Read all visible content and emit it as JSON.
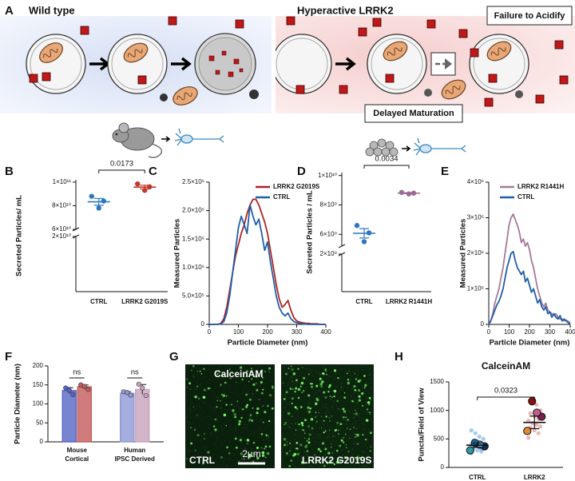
{
  "panels": {
    "letters": [
      "A",
      "B",
      "C",
      "D",
      "E",
      "F",
      "G",
      "H"
    ],
    "A": {
      "left_title": "Wild type",
      "right_title": "Hyperactive LRRK2",
      "callouts": [
        "Failure to Acidify",
        "Delayed Maturation"
      ]
    },
    "G": {
      "stain": "CalceinAM",
      "left_label": "CTRL",
      "right_label": "LRRK2 G2019S",
      "scale_bar": "2µm"
    }
  },
  "chart_data": [
    {
      "type": "dot",
      "ylabel": "Secreted Particles/ mL",
      "categories": [
        "CTRL",
        "LRRK2 G2019S"
      ],
      "colors": [
        "#2b78c0",
        "#c0392b"
      ],
      "points": [
        [
          88000000000,
          84000000000,
          78000000000
        ],
        [
          98500000000,
          96000000000,
          93000000000
        ]
      ],
      "means": [
        83300000000,
        95800000000
      ],
      "errors": [
        2900000000,
        1600000000
      ],
      "comparison": "0.0173",
      "ylim": [
        60000000000,
        102000000000
      ],
      "yticks": [
        {
          "value": 60000000000,
          "label": "6×10¹⁰"
        },
        {
          "value": 80000000000,
          "label": "8×10¹⁰"
        },
        {
          "value": 100000000000,
          "label": "1×10¹¹"
        }
      ],
      "ylim_lower": [
        0,
        20000000000
      ],
      "yticks_lower": [
        {
          "value": 20000000000,
          "label": "2×10¹⁰"
        }
      ]
    },
    {
      "type": "line",
      "xlabel": "Particle Diameter (nm)",
      "ylabel": "Measured Particles",
      "legend": "upper right",
      "x": [
        0,
        10,
        20,
        30,
        40,
        50,
        60,
        70,
        80,
        90,
        100,
        110,
        120,
        130,
        140,
        150,
        160,
        170,
        180,
        190,
        200,
        210,
        220,
        230,
        240,
        250,
        260,
        270,
        280,
        290,
        300,
        310,
        320,
        330,
        340,
        350,
        360,
        370,
        380,
        390,
        400
      ],
      "series": [
        {
          "name": "LRRK2 G2019S",
          "color": "#b22222",
          "values": [
            0,
            0,
            0,
            0,
            20000,
            100000,
            300000,
            600000,
            900000,
            1200000,
            1400000,
            1600000,
            1750000,
            1950000,
            2100000,
            2200000,
            2200000,
            2100000,
            1950000,
            1800000,
            1600000,
            1300000,
            1000000,
            700000,
            450000,
            300000,
            350000,
            420000,
            250000,
            120000,
            60000,
            40000,
            30000,
            20000,
            20000,
            10000,
            10000,
            10000,
            0,
            0,
            0
          ]
        },
        {
          "name": "CTRL",
          "color": "#1f5fa8",
          "values": [
            0,
            0,
            0,
            0,
            10000,
            50000,
            200000,
            500000,
            900000,
            1300000,
            1700000,
            1900000,
            1750000,
            1600000,
            2100000,
            1900000,
            1750000,
            1850000,
            1600000,
            1300000,
            1450000,
            1100000,
            800000,
            500000,
            300000,
            200000,
            150000,
            200000,
            100000,
            50000,
            30000,
            20000,
            10000,
            10000,
            0,
            0,
            0,
            0,
            0,
            0,
            0
          ]
        }
      ],
      "xlim": [
        0,
        400
      ],
      "xticks": [
        0,
        100,
        200,
        300,
        400
      ],
      "ylim": [
        0,
        2500000
      ],
      "yticks": [
        0,
        {
          "value": 500000,
          "label": "5.0×10⁵"
        },
        {
          "value": 1000000,
          "label": "1.0×10⁶"
        },
        {
          "value": 1500000,
          "label": "1.5×10⁶"
        },
        {
          "value": 2000000,
          "label": "2.0×10⁶"
        },
        {
          "value": 2500000,
          "label": "2.5×10⁶"
        }
      ]
    },
    {
      "type": "dot",
      "ylabel": "Secreted Particles / mL",
      "categories": [
        "CTRL",
        "LRRK2 R1441H"
      ],
      "colors": [
        "#2b78c0",
        "#9b6b94"
      ],
      "points": [
        [
          6600000000,
          6100000000,
          5500000000
        ],
        [
          8850000000,
          8800000000,
          8750000000
        ]
      ],
      "means": [
        6070000000,
        8800000000
      ],
      "errors": [
        320000000,
        30000000
      ],
      "comparison": "0.0034",
      "ylim": [
        5200000000,
        10200000000
      ],
      "yticks": [
        {
          "value": 6000000000,
          "label": "6×10⁹"
        },
        {
          "value": 8000000000,
          "label": "8×10⁹"
        },
        {
          "value": 10000000000,
          "label": "1×10¹⁰"
        }
      ],
      "ylim_lower": [
        0,
        2000000000
      ],
      "yticks_lower": [
        {
          "value": 2000000000,
          "label": "2×10⁹"
        }
      ]
    },
    {
      "type": "line",
      "xlabel": "Particle Diameter (nm)",
      "ylabel": "Measured Particles",
      "legend": "upper right",
      "x": [
        0,
        10,
        20,
        30,
        40,
        50,
        60,
        70,
        80,
        90,
        100,
        110,
        120,
        130,
        140,
        150,
        160,
        170,
        180,
        190,
        200,
        210,
        220,
        230,
        240,
        250,
        260,
        270,
        280,
        290,
        300,
        310,
        320,
        330,
        340,
        350,
        360,
        370,
        380,
        390,
        400
      ],
      "series": [
        {
          "name": "LRRK2 R1441H",
          "color": "#a57a9a",
          "values": [
            0,
            100000,
            300000,
            600000,
            800000,
            1000000,
            1300000,
            1600000,
            2000000,
            2400000,
            2800000,
            3000000,
            3100000,
            2950000,
            2800000,
            2600000,
            2300000,
            2400000,
            2200000,
            2300000,
            2100000,
            1800000,
            1600000,
            1300000,
            1000000,
            800000,
            600000,
            500000,
            600000,
            400000,
            350000,
            300000,
            250000,
            300000,
            200000,
            150000,
            150000,
            100000,
            120000,
            80000,
            50000
          ]
        },
        {
          "name": "CTRL",
          "color": "#1f5fa8",
          "values": [
            0,
            100000,
            250000,
            400000,
            550000,
            650000,
            800000,
            1000000,
            1300000,
            1600000,
            1800000,
            2000000,
            2050000,
            1800000,
            1600000,
            1500000,
            1400000,
            1500000,
            1200000,
            1300000,
            1100000,
            900000,
            1000000,
            800000,
            600000,
            700000,
            500000,
            400000,
            500000,
            300000,
            350000,
            200000,
            300000,
            200000,
            150000,
            250000,
            100000,
            150000,
            100000,
            50000,
            20000
          ]
        }
      ],
      "xlim": [
        0,
        400
      ],
      "xticks": [
        0,
        100,
        200,
        300,
        400
      ],
      "ylim": [
        0,
        4000000
      ],
      "yticks": [
        0,
        {
          "value": 1000000,
          "label": "1×10⁶"
        },
        {
          "value": 2000000,
          "label": "2×10⁶"
        },
        {
          "value": 3000000,
          "label": "3×10⁶"
        },
        {
          "value": 4000000,
          "label": "4×10⁶"
        }
      ]
    },
    {
      "type": "bar",
      "ylabel": "Particle Diameter (nm)",
      "categories": [
        [
          "Mouse",
          "Cortical"
        ],
        [
          "Human",
          "IPSC Derived"
        ]
      ],
      "series": [
        {
          "colors": [
            "#5865c4",
            "#8f98d6"
          ],
          "values": [
            135,
            128
          ],
          "errors": [
            8,
            4
          ],
          "points": [
            [
              142,
              136,
              125
            ],
            [
              132,
              130,
              123
            ]
          ]
        },
        {
          "colors": [
            "#c55b5b",
            "#c8a3bb"
          ],
          "values": [
            145,
            138
          ],
          "errors": [
            5,
            13
          ],
          "points": [
            [
              150,
              146,
              138
            ],
            [
              152,
              142,
              122
            ]
          ]
        }
      ],
      "comparisons": [
        "ns",
        "ns"
      ],
      "ylim": [
        0,
        200
      ],
      "yticks": [
        0,
        50,
        100,
        150,
        200
      ]
    },
    {
      "type": "dot",
      "title": "CalceinAM",
      "ylabel": "Puncta/Field of View",
      "categories": [
        "CTRL",
        "LRRK2"
      ],
      "colors": [
        "#7fb6e0",
        "#e39a9a"
      ],
      "points": [
        [
          250,
          280,
          300,
          330,
          350,
          360,
          380,
          400,
          420,
          450,
          470,
          500,
          540,
          600,
          650,
          320,
          440
        ],
        [
          520,
          600,
          650,
          700,
          720,
          750,
          780,
          820,
          850,
          900,
          950,
          1000,
          1100,
          1200,
          680,
          880
        ]
      ],
      "replicates": [
        [
          300,
          370,
          400,
          430
        ],
        [
          640,
          890,
          960,
          1160
        ]
      ],
      "replicate_colors": [
        [
          "#2b9aa0",
          "#0b2f5c",
          "#5aa0d8",
          "#1a6ba0"
        ],
        [
          "#e08a3a",
          "#7a1f4f",
          "#c06090",
          "#8b1010"
        ]
      ],
      "means": [
        390,
        790
      ],
      "errors": [
        40,
        110
      ],
      "comparison": "0.0323",
      "ylim": [
        0,
        1500
      ],
      "yticks": [
        0,
        500,
        1000,
        1500
      ]
    }
  ]
}
